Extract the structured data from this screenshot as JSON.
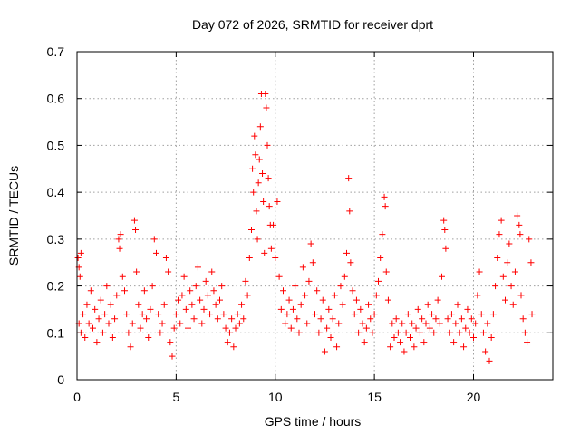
{
  "chart_data": {
    "type": "scatter",
    "title": "Day 072 of 2026, SRMTID for receiver dprt",
    "xlabel": "GPS time / hours",
    "ylabel": "SRMTID / TECUs",
    "xlim": [
      0,
      24
    ],
    "ylim": [
      0,
      0.7
    ],
    "xticks": [
      0,
      5,
      10,
      15,
      20
    ],
    "xtick_labels": [
      "0",
      "5",
      "10",
      "15",
      "20"
    ],
    "yticks": [
      0,
      0.1,
      0.2,
      0.3,
      0.4,
      0.5,
      0.6,
      0.7
    ],
    "ytick_labels": [
      "0",
      "0.1",
      "0.2",
      "0.3",
      "0.4",
      "0.5",
      "0.6",
      "0.7"
    ],
    "grid": true,
    "marker": "+",
    "color": "#ff0000",
    "series": [
      {
        "name": "SRMTID",
        "points": [
          [
            0.05,
            0.26
          ],
          [
            0.1,
            0.24
          ],
          [
            0.15,
            0.22
          ],
          [
            0.2,
            0.27
          ],
          [
            0.1,
            0.12
          ],
          [
            0.2,
            0.1
          ],
          [
            0.3,
            0.14
          ],
          [
            0.4,
            0.09
          ],
          [
            0.5,
            0.16
          ],
          [
            0.6,
            0.12
          ],
          [
            0.7,
            0.19
          ],
          [
            0.8,
            0.11
          ],
          [
            0.9,
            0.15
          ],
          [
            1.0,
            0.08
          ],
          [
            1.1,
            0.13
          ],
          [
            1.2,
            0.17
          ],
          [
            1.3,
            0.1
          ],
          [
            1.4,
            0.14
          ],
          [
            1.5,
            0.2
          ],
          [
            1.6,
            0.12
          ],
          [
            1.7,
            0.16
          ],
          [
            1.8,
            0.09
          ],
          [
            1.9,
            0.13
          ],
          [
            2.0,
            0.18
          ],
          [
            2.1,
            0.3
          ],
          [
            2.15,
            0.28
          ],
          [
            2.2,
            0.31
          ],
          [
            2.3,
            0.22
          ],
          [
            2.4,
            0.19
          ],
          [
            2.5,
            0.14
          ],
          [
            2.6,
            0.1
          ],
          [
            2.7,
            0.07
          ],
          [
            2.8,
            0.12
          ],
          [
            2.9,
            0.34
          ],
          [
            2.95,
            0.32
          ],
          [
            3.0,
            0.23
          ],
          [
            3.1,
            0.16
          ],
          [
            3.2,
            0.11
          ],
          [
            3.3,
            0.14
          ],
          [
            3.4,
            0.19
          ],
          [
            3.5,
            0.13
          ],
          [
            3.6,
            0.09
          ],
          [
            3.7,
            0.15
          ],
          [
            3.8,
            0.2
          ],
          [
            3.9,
            0.3
          ],
          [
            4.0,
            0.27
          ],
          [
            4.1,
            0.14
          ],
          [
            4.2,
            0.1
          ],
          [
            4.3,
            0.12
          ],
          [
            4.4,
            0.16
          ],
          [
            4.5,
            0.26
          ],
          [
            4.6,
            0.23
          ],
          [
            4.7,
            0.08
          ],
          [
            4.8,
            0.05
          ],
          [
            4.9,
            0.11
          ],
          [
            5.0,
            0.14
          ],
          [
            5.1,
            0.17
          ],
          [
            5.2,
            0.12
          ],
          [
            5.3,
            0.18
          ],
          [
            5.4,
            0.22
          ],
          [
            5.5,
            0.15
          ],
          [
            5.6,
            0.11
          ],
          [
            5.7,
            0.19
          ],
          [
            5.8,
            0.16
          ],
          [
            5.9,
            0.13
          ],
          [
            6.0,
            0.2
          ],
          [
            6.1,
            0.24
          ],
          [
            6.2,
            0.17
          ],
          [
            6.3,
            0.12
          ],
          [
            6.4,
            0.15
          ],
          [
            6.5,
            0.21
          ],
          [
            6.6,
            0.18
          ],
          [
            6.7,
            0.14
          ],
          [
            6.8,
            0.23
          ],
          [
            6.9,
            0.19
          ],
          [
            7.0,
            0.16
          ],
          [
            7.1,
            0.13
          ],
          [
            7.2,
            0.17
          ],
          [
            7.3,
            0.2
          ],
          [
            7.4,
            0.14
          ],
          [
            7.5,
            0.11
          ],
          [
            7.6,
            0.08
          ],
          [
            7.7,
            0.1
          ],
          [
            7.8,
            0.13
          ],
          [
            7.9,
            0.07
          ],
          [
            8.0,
            0.11
          ],
          [
            8.1,
            0.14
          ],
          [
            8.2,
            0.12
          ],
          [
            8.3,
            0.16
          ],
          [
            8.4,
            0.13
          ],
          [
            8.5,
            0.21
          ],
          [
            8.6,
            0.18
          ],
          [
            8.7,
            0.26
          ],
          [
            8.8,
            0.32
          ],
          [
            8.85,
            0.45
          ],
          [
            8.9,
            0.4
          ],
          [
            8.95,
            0.52
          ],
          [
            9.0,
            0.48
          ],
          [
            9.05,
            0.36
          ],
          [
            9.1,
            0.3
          ],
          [
            9.15,
            0.42
          ],
          [
            9.2,
            0.47
          ],
          [
            9.25,
            0.54
          ],
          [
            9.3,
            0.61
          ],
          [
            9.35,
            0.44
          ],
          [
            9.4,
            0.38
          ],
          [
            9.45,
            0.27
          ],
          [
            9.5,
            0.61
          ],
          [
            9.55,
            0.58
          ],
          [
            9.6,
            0.5
          ],
          [
            9.65,
            0.43
          ],
          [
            9.7,
            0.37
          ],
          [
            9.75,
            0.33
          ],
          [
            9.8,
            0.28
          ],
          [
            9.9,
            0.33
          ],
          [
            10.0,
            0.26
          ],
          [
            10.1,
            0.38
          ],
          [
            10.2,
            0.22
          ],
          [
            10.3,
            0.15
          ],
          [
            10.4,
            0.19
          ],
          [
            10.5,
            0.12
          ],
          [
            10.6,
            0.14
          ],
          [
            10.7,
            0.17
          ],
          [
            10.8,
            0.11
          ],
          [
            10.9,
            0.15
          ],
          [
            11.0,
            0.2
          ],
          [
            11.1,
            0.13
          ],
          [
            11.2,
            0.1
          ],
          [
            11.3,
            0.16
          ],
          [
            11.4,
            0.24
          ],
          [
            11.5,
            0.18
          ],
          [
            11.6,
            0.12
          ],
          [
            11.7,
            0.21
          ],
          [
            11.8,
            0.29
          ],
          [
            11.9,
            0.25
          ],
          [
            12.0,
            0.14
          ],
          [
            12.1,
            0.19
          ],
          [
            12.2,
            0.1
          ],
          [
            12.3,
            0.13
          ],
          [
            12.4,
            0.17
          ],
          [
            12.5,
            0.06
          ],
          [
            12.6,
            0.11
          ],
          [
            12.7,
            0.15
          ],
          [
            12.8,
            0.09
          ],
          [
            12.9,
            0.13
          ],
          [
            13.0,
            0.18
          ],
          [
            13.1,
            0.07
          ],
          [
            13.2,
            0.12
          ],
          [
            13.3,
            0.2
          ],
          [
            13.4,
            0.16
          ],
          [
            13.5,
            0.22
          ],
          [
            13.6,
            0.27
          ],
          [
            13.7,
            0.43
          ],
          [
            13.75,
            0.36
          ],
          [
            13.8,
            0.25
          ],
          [
            13.9,
            0.19
          ],
          [
            14.0,
            0.14
          ],
          [
            14.1,
            0.17
          ],
          [
            14.2,
            0.1
          ],
          [
            14.3,
            0.15
          ],
          [
            14.4,
            0.12
          ],
          [
            14.5,
            0.08
          ],
          [
            14.6,
            0.11
          ],
          [
            14.7,
            0.16
          ],
          [
            14.8,
            0.13
          ],
          [
            14.9,
            0.1
          ],
          [
            15.0,
            0.14
          ],
          [
            15.1,
            0.18
          ],
          [
            15.2,
            0.21
          ],
          [
            15.3,
            0.26
          ],
          [
            15.4,
            0.31
          ],
          [
            15.5,
            0.39
          ],
          [
            15.55,
            0.37
          ],
          [
            15.6,
            0.23
          ],
          [
            15.7,
            0.17
          ],
          [
            15.8,
            0.07
          ],
          [
            15.9,
            0.12
          ],
          [
            16.0,
            0.09
          ],
          [
            16.1,
            0.13
          ],
          [
            16.2,
            0.1
          ],
          [
            16.3,
            0.08
          ],
          [
            16.4,
            0.12
          ],
          [
            16.5,
            0.06
          ],
          [
            16.6,
            0.1
          ],
          [
            16.7,
            0.14
          ],
          [
            16.8,
            0.09
          ],
          [
            16.9,
            0.12
          ],
          [
            17.0,
            0.07
          ],
          [
            17.1,
            0.11
          ],
          [
            17.2,
            0.15
          ],
          [
            17.3,
            0.1
          ],
          [
            17.4,
            0.13
          ],
          [
            17.5,
            0.08
          ],
          [
            17.6,
            0.12
          ],
          [
            17.7,
            0.16
          ],
          [
            17.8,
            0.11
          ],
          [
            17.9,
            0.14
          ],
          [
            18.0,
            0.1
          ],
          [
            18.1,
            0.13
          ],
          [
            18.2,
            0.17
          ],
          [
            18.3,
            0.12
          ],
          [
            18.4,
            0.22
          ],
          [
            18.5,
            0.34
          ],
          [
            18.55,
            0.32
          ],
          [
            18.6,
            0.28
          ],
          [
            18.7,
            0.13
          ],
          [
            18.8,
            0.1
          ],
          [
            18.9,
            0.14
          ],
          [
            19.0,
            0.08
          ],
          [
            19.1,
            0.12
          ],
          [
            19.2,
            0.16
          ],
          [
            19.3,
            0.1
          ],
          [
            19.4,
            0.13
          ],
          [
            19.5,
            0.07
          ],
          [
            19.6,
            0.11
          ],
          [
            19.7,
            0.15
          ],
          [
            19.8,
            0.1
          ],
          [
            19.9,
            0.13
          ],
          [
            20.0,
            0.09
          ],
          [
            20.1,
            0.12
          ],
          [
            20.2,
            0.18
          ],
          [
            20.3,
            0.23
          ],
          [
            20.4,
            0.14
          ],
          [
            20.5,
            0.1
          ],
          [
            20.6,
            0.06
          ],
          [
            20.7,
            0.12
          ],
          [
            20.8,
            0.04
          ],
          [
            20.9,
            0.09
          ],
          [
            21.0,
            0.14
          ],
          [
            21.1,
            0.2
          ],
          [
            21.2,
            0.26
          ],
          [
            21.3,
            0.31
          ],
          [
            21.4,
            0.34
          ],
          [
            21.5,
            0.22
          ],
          [
            21.6,
            0.17
          ],
          [
            21.7,
            0.25
          ],
          [
            21.8,
            0.29
          ],
          [
            21.9,
            0.2
          ],
          [
            22.0,
            0.16
          ],
          [
            22.1,
            0.23
          ],
          [
            22.2,
            0.35
          ],
          [
            22.3,
            0.33
          ],
          [
            22.35,
            0.31
          ],
          [
            22.4,
            0.18
          ],
          [
            22.5,
            0.13
          ],
          [
            22.6,
            0.1
          ],
          [
            22.7,
            0.08
          ],
          [
            22.8,
            0.3
          ],
          [
            22.9,
            0.25
          ],
          [
            22.95,
            0.14
          ]
        ]
      }
    ]
  }
}
